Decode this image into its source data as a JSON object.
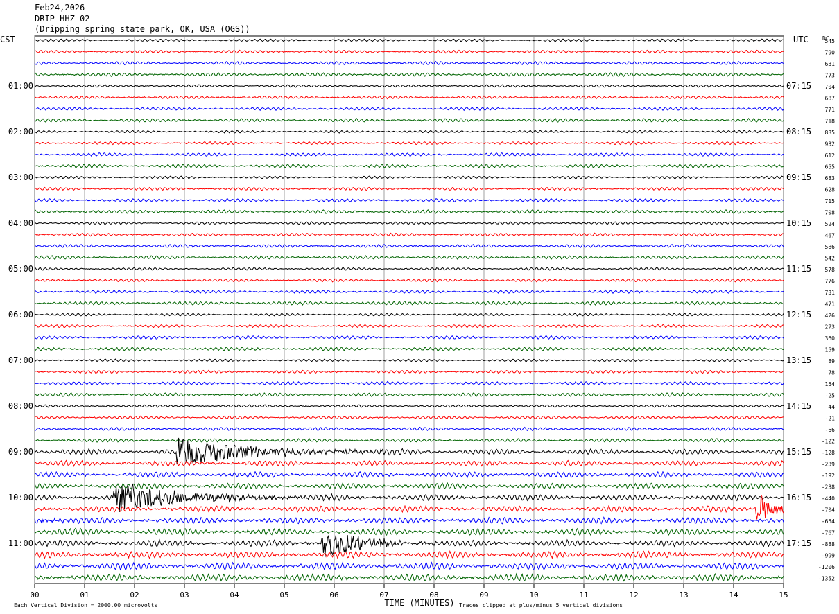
{
  "header": {
    "date": "Feb24,2026",
    "station": "DRIP HHZ 02 --",
    "location": "(Dripping spring state park, OK, USA (OGS))"
  },
  "chart_data": {
    "type": "helicorder",
    "left_timezone": "CST",
    "right_timezone": "UTC",
    "dc_label": "DC",
    "xlabel": "TIME (MINUTES)",
    "x_ticks": [
      "00",
      "01",
      "02",
      "03",
      "04",
      "05",
      "06",
      "07",
      "08",
      "09",
      "10",
      "11",
      "12",
      "13",
      "14",
      "15"
    ],
    "xlim": [
      0,
      15
    ],
    "left_hour_labels": [
      "01:00",
      "02:00",
      "03:00",
      "04:00",
      "05:00",
      "06:00",
      "07:00",
      "08:00",
      "09:00",
      "10:00",
      "11:00"
    ],
    "right_hour_labels": [
      "07:15",
      "08:15",
      "09:15",
      "10:15",
      "11:15",
      "12:15",
      "13:15",
      "14:15",
      "15:15",
      "16:15",
      "17:15"
    ],
    "dc_offsets": [
      545,
      790,
      631,
      773,
      704,
      687,
      771,
      718,
      835,
      932,
      612,
      655,
      683,
      628,
      715,
      708,
      524,
      467,
      586,
      542,
      578,
      776,
      731,
      471,
      426,
      273,
      360,
      159,
      89,
      78,
      154,
      -25,
      44,
      -21,
      -66,
      -122,
      -128,
      -239,
      -192,
      -238,
      -440,
      -704,
      -654,
      -767,
      -888,
      -999,
      -1206,
      -1352
    ],
    "trace_colors": [
      "#000000",
      "#ff0000",
      "#0000ff",
      "#006400"
    ],
    "footer_left": "Each Vertical Division = 2000.00 microvolts",
    "footer_right": "Traces clipped at plus/minus 5 vertical divisions",
    "events": [
      {
        "start_trace": 36,
        "start_min": 2.9,
        "duration_min": 1.6,
        "amplitude": "large"
      },
      {
        "start_trace": 40,
        "start_min": 1.6,
        "duration_min": 1.5,
        "amplitude": "large"
      },
      {
        "start_trace": 44,
        "start_min": 5.8,
        "duration_min": 0.8,
        "amplitude": "large"
      },
      {
        "start_trace": 41,
        "start_min": 14.5,
        "duration_min": 0.4,
        "amplitude": "large"
      }
    ]
  }
}
